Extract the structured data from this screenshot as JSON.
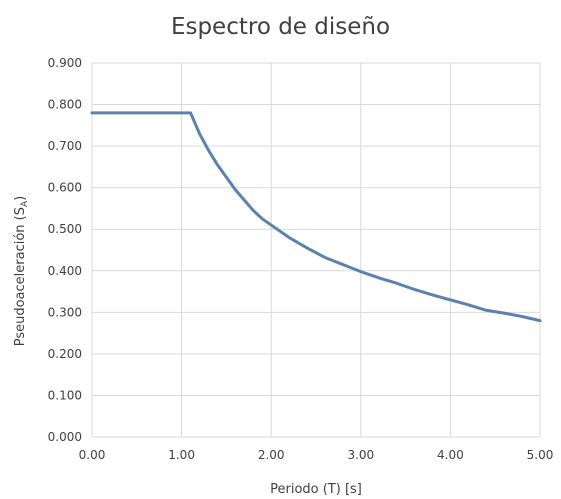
{
  "chart_data": {
    "type": "line",
    "title": "Espectro de diseño",
    "xlabel": "Periodo (T) [s]",
    "ylabel_main": "Pseudoaceleración (S",
    "ylabel_sub": "A",
    "ylabel_end": ")",
    "xlim": [
      0,
      5
    ],
    "ylim": [
      0,
      0.9
    ],
    "x_ticks": [
      "0.00",
      "1.00",
      "2.00",
      "3.00",
      "4.00",
      "5.00"
    ],
    "y_ticks": [
      "0.000",
      "0.100",
      "0.200",
      "0.300",
      "0.400",
      "0.500",
      "0.600",
      "0.700",
      "0.800",
      "0.900"
    ],
    "grid": true,
    "series": [
      {
        "color": "#5b82ad",
        "x": [
          0.0,
          1.1,
          1.2,
          1.3,
          1.4,
          1.5,
          1.6,
          1.7,
          1.8,
          1.9,
          2.0,
          2.2,
          2.4,
          2.6,
          2.8,
          3.0,
          3.2,
          3.4,
          3.6,
          3.8,
          4.0,
          4.2,
          4.4,
          4.6,
          4.8,
          5.0
        ],
        "y": [
          0.78,
          0.78,
          0.73,
          0.69,
          0.655,
          0.625,
          0.595,
          0.57,
          0.545,
          0.525,
          0.51,
          0.48,
          0.455,
          0.432,
          0.415,
          0.398,
          0.383,
          0.37,
          0.355,
          0.342,
          0.33,
          0.318,
          0.305,
          0.298,
          0.29,
          0.28
        ]
      }
    ]
  }
}
